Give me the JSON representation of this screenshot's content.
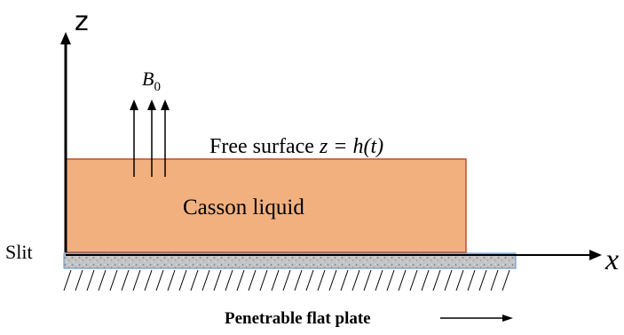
{
  "axes": {
    "z_label": "z",
    "x_label": "x"
  },
  "field": {
    "symbol": "B",
    "subscript": "0"
  },
  "labels": {
    "free_surface_text": "Free surface ",
    "free_surface_eq": "z = h(t)",
    "liquid": "Casson liquid",
    "slit": "Slit",
    "plate": "Penetrable flat plate"
  },
  "colors": {
    "liquid_fill": "#F2B07E",
    "liquid_border": "#C0502A",
    "plate_fill": "#BDBDBD",
    "plate_border": "#5B8FD0",
    "line": "#000000"
  }
}
